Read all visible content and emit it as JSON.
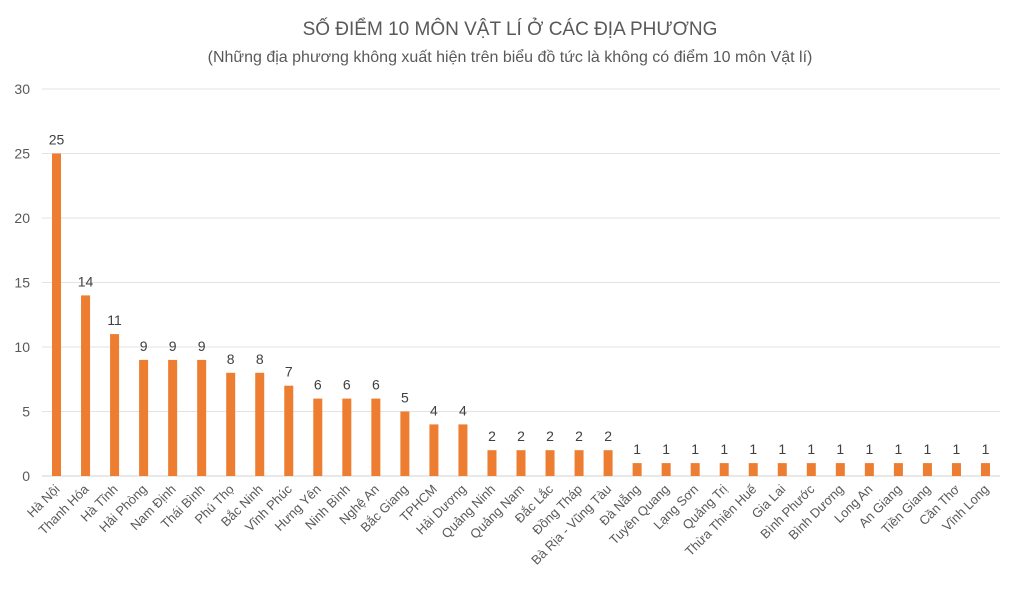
{
  "chart_data": {
    "type": "bar",
    "title": "SỐ ĐIỂM 10 MÔN VẬT LÍ Ở CÁC ĐỊA PHƯƠNG",
    "subtitle": "(Những địa phương không xuất hiện trên biểu đồ tức là không có điểm 10 môn Vật lí)",
    "xlabel": "",
    "ylabel": "",
    "ylim": [
      0,
      30
    ],
    "yticks": [
      0,
      5,
      10,
      15,
      20,
      25,
      30
    ],
    "grid": true,
    "bar_color": "#ED7D31",
    "categories": [
      "Hà Nội",
      "Thanh Hóa",
      "Hà Tĩnh",
      "Hải Phòng",
      "Nam Định",
      "Thái Bình",
      "Phú Thọ",
      "Bắc Ninh",
      "Vĩnh Phúc",
      "Hưng Yên",
      "Ninh Bình",
      "Nghệ An",
      "Bắc Giang",
      "TPHCM",
      "Hải Dương",
      "Quảng Ninh",
      "Quảng Nam",
      "Đắc Lắc",
      "Đồng Tháp",
      "Bà Rịa - Vũng Tàu",
      "Đà Nẵng",
      "Tuyên Quang",
      "Lạng Sơn",
      "Quảng Trị",
      "Thừa Thiên Huế",
      "Gia Lai",
      "Bình Phước",
      "Bình Dương",
      "Long An",
      "An Giang",
      "Tiền Giang",
      "Cần Thơ",
      "Vĩnh Long"
    ],
    "values": [
      25,
      14,
      11,
      9,
      9,
      9,
      8,
      8,
      7,
      6,
      6,
      6,
      5,
      4,
      4,
      2,
      2,
      2,
      2,
      2,
      1,
      1,
      1,
      1,
      1,
      1,
      1,
      1,
      1,
      1,
      1,
      1,
      1
    ]
  }
}
